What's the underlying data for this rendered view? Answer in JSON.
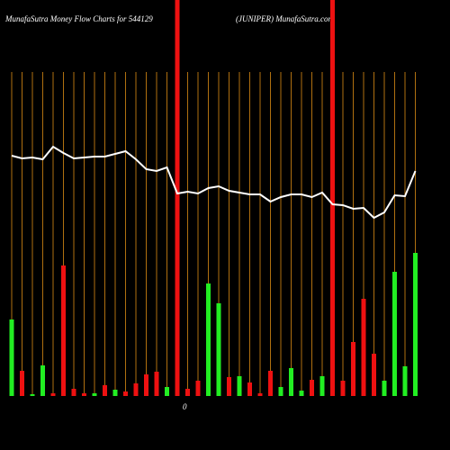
{
  "chart_data": {
    "type": "bar",
    "title": "MunafaSutra  Money Flow  Charts for 544129",
    "subtitle": "(JUNIPER) MunafaSutra.com",
    "zero_label": "0",
    "categories": [
      null,
      null,
      null,
      null,
      null,
      null,
      null,
      null,
      null,
      null,
      null,
      null,
      null,
      null,
      null,
      null,
      null,
      null,
      null,
      null,
      null,
      null,
      null,
      null,
      null,
      null,
      null,
      null,
      null,
      null,
      null,
      null,
      null,
      null,
      null,
      null,
      null,
      null,
      null,
      null
    ],
    "values": [
      85,
      28,
      2,
      34,
      3,
      145,
      8,
      3,
      3,
      12,
      7,
      5,
      14,
      24,
      27,
      10,
      440,
      8,
      17,
      125,
      103,
      21,
      22,
      15,
      3,
      28,
      10,
      31,
      6,
      18,
      22,
      440,
      17,
      60,
      108,
      47,
      17,
      138,
      33,
      159
    ],
    "colors": [
      "#22ee22",
      "#ee1111",
      "#22ee22",
      "#22ee22",
      "#ee1111",
      "#ee1111",
      "#ee1111",
      "#ee1111",
      "#22ee22",
      "#ee1111",
      "#22ee22",
      "#ee1111",
      "#ee1111",
      "#ee1111",
      "#ee1111",
      "#22ee22",
      "#ee1111",
      "#ee1111",
      "#ee1111",
      "#22ee22",
      "#22ee22",
      "#ee1111",
      "#22ee22",
      "#ee1111",
      "#ee1111",
      "#ee1111",
      "#22ee22",
      "#22ee22",
      "#22ee22",
      "#ee1111",
      "#22ee22",
      "#ee1111",
      "#ee1111",
      "#ee1111",
      "#ee1111",
      "#ee1111",
      "#22ee22",
      "#22ee22",
      "#22ee22",
      "#22ee22"
    ],
    "line_values": [
      267,
      264,
      265,
      263,
      277,
      270,
      264,
      265,
      266,
      266,
      269,
      272,
      263,
      252,
      250,
      254,
      225,
      227,
      225,
      231,
      233,
      228,
      226,
      224,
      224,
      216,
      221,
      224,
      224,
      221,
      226,
      213,
      212,
      208,
      209,
      198,
      204,
      223,
      222,
      250
    ],
    "line_color": "#ffffff",
    "ylim": [
      0,
      440
    ]
  }
}
